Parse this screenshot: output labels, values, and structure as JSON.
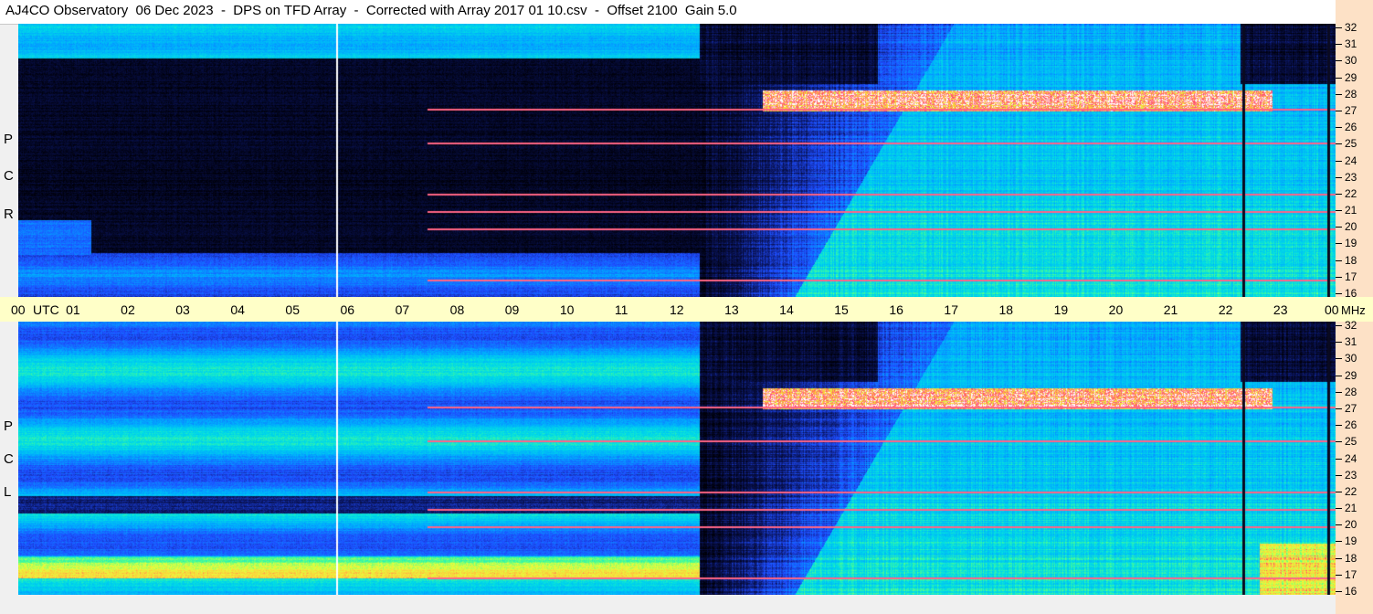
{
  "title": "AJ4CO Observatory  06 Dec 2023  -  DPS on TFD Array  -  Corrected with Array 2017 01 10.csv  -  Offset 2100  Gain 5.0",
  "colors": {
    "background_dark": "#000010",
    "blue": "#1e4cff",
    "cyan": "#00c8ff",
    "green": "#40ff80",
    "yellow": "#ffff40",
    "red": "#ff4040",
    "magenta": "#ff40ff",
    "white": "#ffffff",
    "utc_axis_bg": "#ffffc8",
    "freq_axis_bg": "#fde1c6"
  },
  "panels": {
    "top": {
      "polarization": [
        "R",
        "C",
        "P"
      ]
    },
    "bottom": {
      "polarization": [
        "L",
        "C",
        "P"
      ]
    }
  },
  "chart_data": {
    "type": "heatmap",
    "x_axis": {
      "label": "UTC",
      "ticks": [
        "00",
        "01",
        "02",
        "03",
        "04",
        "05",
        "06",
        "07",
        "08",
        "09",
        "10",
        "11",
        "12",
        "13",
        "14",
        "15",
        "16",
        "17",
        "18",
        "19",
        "20",
        "21",
        "22",
        "23",
        "00"
      ],
      "range": [
        0,
        24
      ]
    },
    "y_axis": {
      "unit": "MHz",
      "ticks": [
        32,
        31,
        30,
        29,
        28,
        27,
        26,
        25,
        24,
        23,
        22,
        21,
        20,
        19,
        18,
        17,
        16
      ],
      "range": [
        16,
        32
      ]
    },
    "series": [
      {
        "name": "RCP"
      },
      {
        "name": "LCP"
      }
    ],
    "features": {
      "dayside_onset_utc": 12.4,
      "marker_lines_utc": [
        5.8,
        22.3,
        23.85
      ],
      "strong_band_mhz": [
        27,
        28
      ],
      "rfi_lines_mhz": [
        17,
        20,
        21,
        22,
        25,
        27
      ]
    }
  }
}
